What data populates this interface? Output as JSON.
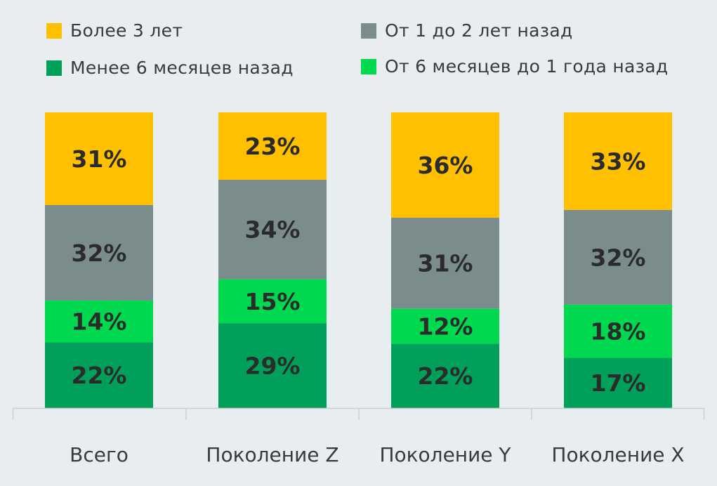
{
  "chart_data": {
    "type": "bar",
    "stacked": true,
    "categories": [
      "Всего",
      "Поколение Z",
      "Поколение Y",
      "Поколение X"
    ],
    "ylim": [
      0,
      100
    ],
    "grid": false,
    "legend_position": "top",
    "series": [
      {
        "name": "Менее 6 месяцев назад",
        "color": "#00a05a",
        "values": [
          22,
          29,
          22,
          17
        ],
        "labels": [
          "22%",
          "29%",
          "22%",
          "17%"
        ]
      },
      {
        "name": "От 6 месяцев до 1 года назад",
        "color": "#00d94f",
        "values": [
          14,
          15,
          12,
          18
        ],
        "labels": [
          "14%",
          "15%",
          "12%",
          "18%"
        ]
      },
      {
        "name": "От 1 до 2 лет назад",
        "color": "#7a8c8c",
        "values": [
          32,
          34,
          31,
          32
        ],
        "labels": [
          "32%",
          "34%",
          "31%",
          "32%"
        ]
      },
      {
        "name": "Более 3 лет",
        "color": "#ffc000",
        "values": [
          31,
          23,
          36,
          33
        ],
        "labels": [
          "31%",
          "23%",
          "36%",
          "33%"
        ]
      }
    ],
    "legend": [
      {
        "label": "Более 3 лет",
        "color": "#ffc000"
      },
      {
        "label": "От 1 до 2 лет назад",
        "color": "#7a8c8c"
      },
      {
        "label": "Менее 6 месяцев назад",
        "color": "#00a05a"
      },
      {
        "label": "От 6 месяцев до 1 года назад",
        "color": "#00d94f"
      }
    ]
  }
}
